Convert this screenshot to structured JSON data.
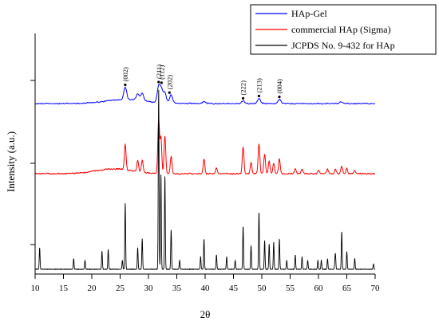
{
  "chart_data": {
    "type": "line",
    "xlabel": "2θ",
    "ylabel": "Intensity (a.u.)",
    "xlim": [
      10,
      70
    ],
    "x_ticks": [
      10,
      15,
      20,
      25,
      30,
      35,
      40,
      45,
      50,
      55,
      60,
      65,
      70
    ],
    "grid": false,
    "legend_position": "top-right",
    "series": [
      {
        "name": "HAp-Gel",
        "color": "#0000ff",
        "baseline": 0.125,
        "peaks": [
          [
            25.9,
            0.34
          ],
          [
            28.1,
            0.18
          ],
          [
            28.9,
            0.21
          ],
          [
            31.8,
            0.44
          ],
          [
            32.3,
            0.34
          ],
          [
            32.9,
            0.28
          ],
          [
            34.0,
            0.24
          ],
          [
            39.8,
            0.06
          ],
          [
            46.7,
            0.07
          ],
          [
            49.5,
            0.14
          ],
          [
            53.1,
            0.11
          ],
          [
            64.0,
            0.04
          ]
        ],
        "annotations": [
          {
            "label": "(002)",
            "x": 25.9
          },
          {
            "label": "(211)",
            "x": 31.8
          },
          {
            "label": "(112)",
            "x": 32.3
          },
          {
            "label": "(202)",
            "x": 33.7
          },
          {
            "label": "(222)",
            "x": 46.7
          },
          {
            "label": "(213)",
            "x": 49.5
          },
          {
            "label": "(004)",
            "x": 53.1
          }
        ]
      },
      {
        "name": "commercial HAp (Sigma)",
        "color": "#ff0000",
        "baseline": 0.06,
        "peaks": [
          [
            25.9,
            0.29
          ],
          [
            28.1,
            0.13
          ],
          [
            28.9,
            0.14
          ],
          [
            31.8,
            0.62
          ],
          [
            32.2,
            0.41
          ],
          [
            32.9,
            0.44
          ],
          [
            34.0,
            0.2
          ],
          [
            39.8,
            0.17
          ],
          [
            42.0,
            0.07
          ],
          [
            46.7,
            0.31
          ],
          [
            48.1,
            0.13
          ],
          [
            49.5,
            0.34
          ],
          [
            50.5,
            0.22
          ],
          [
            51.3,
            0.15
          ],
          [
            52.1,
            0.12
          ],
          [
            53.1,
            0.17
          ],
          [
            55.9,
            0.06
          ],
          [
            57.1,
            0.05
          ],
          [
            60.0,
            0.04
          ],
          [
            61.6,
            0.05
          ],
          [
            63.0,
            0.05
          ],
          [
            64.1,
            0.09
          ],
          [
            65.0,
            0.06
          ],
          [
            66.4,
            0.04
          ]
        ]
      },
      {
        "name": "JCPDS No. 9-432 for HAp",
        "color": "#000000",
        "baseline": 0.0,
        "peaks": [
          [
            10.8,
            0.12
          ],
          [
            16.8,
            0.06
          ],
          [
            18.8,
            0.05
          ],
          [
            21.8,
            0.1
          ],
          [
            22.9,
            0.11
          ],
          [
            25.4,
            0.05
          ],
          [
            25.9,
            0.37
          ],
          [
            28.1,
            0.12
          ],
          [
            28.9,
            0.17
          ],
          [
            31.8,
            1.0
          ],
          [
            32.2,
            0.53
          ],
          [
            32.9,
            0.52
          ],
          [
            34.0,
            0.22
          ],
          [
            35.5,
            0.05
          ],
          [
            39.2,
            0.07
          ],
          [
            39.8,
            0.17
          ],
          [
            42.0,
            0.08
          ],
          [
            43.8,
            0.07
          ],
          [
            45.3,
            0.05
          ],
          [
            46.7,
            0.24
          ],
          [
            48.1,
            0.13
          ],
          [
            49.5,
            0.32
          ],
          [
            50.5,
            0.16
          ],
          [
            51.3,
            0.14
          ],
          [
            52.1,
            0.15
          ],
          [
            53.1,
            0.17
          ],
          [
            54.4,
            0.05
          ],
          [
            55.9,
            0.08
          ],
          [
            57.1,
            0.07
          ],
          [
            58.1,
            0.05
          ],
          [
            59.9,
            0.05
          ],
          [
            60.5,
            0.05
          ],
          [
            61.6,
            0.06
          ],
          [
            62.9,
            0.04
          ],
          [
            63.0,
            0.07
          ],
          [
            64.1,
            0.21
          ],
          [
            65.0,
            0.1
          ],
          [
            66.4,
            0.06
          ],
          [
            69.7,
            0.03
          ]
        ]
      }
    ]
  }
}
